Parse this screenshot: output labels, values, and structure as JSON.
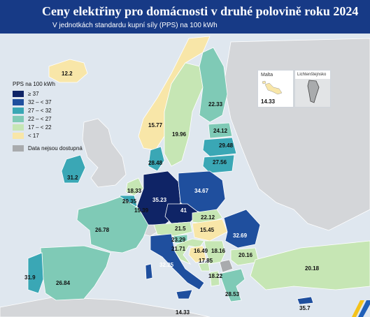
{
  "header": {
    "title": "Ceny elektřiny pro domácnosti v druhé polovině roku 2024",
    "subtitle": "V jednotkách standardu kupní síly (PPS) na 100 kWh"
  },
  "legend": {
    "title": "PPS na 100 kWh",
    "classes": [
      {
        "label": "≥ 37",
        "color": "#0f2466"
      },
      {
        "label": "32 – < 37",
        "color": "#1f4f9e"
      },
      {
        "label": "27 – < 32",
        "color": "#3aa7b5"
      },
      {
        "label": "22 – < 27",
        "color": "#7fcab6"
      },
      {
        "label": "17 – < 22",
        "color": "#c6e6b4"
      },
      {
        "label": "< 17",
        "color": "#f8e6a8"
      }
    ],
    "na": {
      "label": "Data nejsou dostupná",
      "color": "#a9abad"
    }
  },
  "countries": {
    "IS": "12.2",
    "NO": "15.77",
    "SE": "19.96",
    "FI": "22.33",
    "EE": "24.12",
    "LV": "29.48",
    "LT": "27.56",
    "DK": "28.48",
    "IE": "31.2",
    "NL": "18.33",
    "BE": "29.35",
    "LU": "15.39",
    "DE": "35.23",
    "PL": "34.67",
    "CZ": "41",
    "SK": "22.12",
    "AT": "21.5",
    "HU": "15.45",
    "RO": "32.69",
    "FR": "26.78",
    "SI": "23.29",
    "HR": "21.71",
    "BA": "16.49",
    "RS": "18.16",
    "ME": "17.85",
    "BG": "20.16",
    "IT": "32.25",
    "ES": "26.84",
    "PT": "31.9",
    "GR": "28.53",
    "AL": "18.22",
    "TR": "20.18",
    "MT": "14.33",
    "CY": "35.7"
  },
  "insets": {
    "malta": {
      "title": "Malta",
      "value": "14.33"
    },
    "liechtenstein": {
      "title": "Lichtenštejnsko"
    }
  },
  "colors": {
    "sea": "#dfe7ef",
    "nonEU": "#d4d6d9",
    "border": "#ffffff",
    "header": "#173a86"
  }
}
